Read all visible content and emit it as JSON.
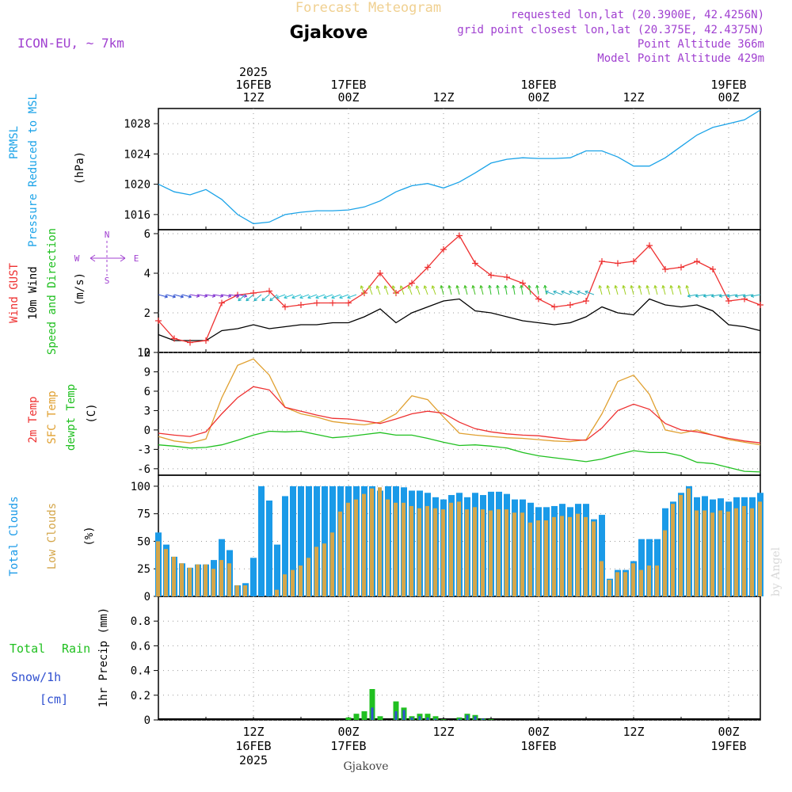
{
  "header": {
    "app_title": "Forecast Meteogram",
    "location": "Gjakove",
    "model": "ICON-EU, ~ 7km",
    "requested": "requested lon,lat (20.3900E, 42.4256N)",
    "grid_point": "grid point closest lon,lat (20.375E, 42.4375N)",
    "point_altitude": "Point Altitude 366m",
    "model_altitude": "Model Point Altitude 429m",
    "footer_location": "Gjakove",
    "credit": "by Angel"
  },
  "time_axis": {
    "top_ticks": [
      {
        "hour": 36,
        "lines": [
          "2025",
          "16FEB",
          "12Z"
        ]
      },
      {
        "hour": 48,
        "lines": [
          "17FEB",
          "00Z"
        ]
      },
      {
        "hour": 60,
        "lines": [
          "12Z"
        ]
      },
      {
        "hour": 72,
        "lines": [
          "18FEB",
          "00Z"
        ]
      },
      {
        "hour": 84,
        "lines": [
          "12Z"
        ]
      },
      {
        "hour": 96,
        "lines": [
          "19FEB",
          "00Z"
        ]
      }
    ],
    "bottom_ticks": [
      {
        "hour": 36,
        "lines": [
          "12Z",
          "16FEB",
          "2025"
        ]
      },
      {
        "hour": 48,
        "lines": [
          "00Z",
          "17FEB"
        ]
      },
      {
        "hour": 60,
        "lines": [
          "12Z"
        ]
      },
      {
        "hour": 72,
        "lines": [
          "00Z",
          "18FEB"
        ]
      },
      {
        "hour": 84,
        "lines": [
          "12Z"
        ]
      },
      {
        "hour": 96,
        "lines": [
          "00Z",
          "19FEB"
        ]
      }
    ]
  },
  "panels": {
    "pressure": {
      "label1": "PRMSL",
      "label2": "Pressure Reduced to MSL",
      "unit": "(hPa)",
      "ticks": [
        "1016",
        "1020",
        "1024",
        "1028"
      ]
    },
    "wind": {
      "label1": "Wind GUST",
      "label2": "10m Wind",
      "label3": "Speed and Direction",
      "unit": "(m/s)",
      "ticks": [
        "0",
        "2",
        "4",
        "6"
      ],
      "compass_n": "N",
      "compass_s": "S",
      "compass_w": "W",
      "compass_e": "E"
    },
    "temp": {
      "label1": "2m Temp",
      "label2": "SFC Temp",
      "label3": "dewpt Temp",
      "unit": "(C)",
      "ticks": [
        "-6",
        "-3",
        "0",
        "3",
        "6",
        "9",
        "12"
      ]
    },
    "clouds": {
      "label1": "Total Clouds",
      "label2": "Low Clouds",
      "unit": "(%)",
      "ticks": [
        "0",
        "25",
        "50",
        "75",
        "100"
      ]
    },
    "precip": {
      "label1": "Total",
      "label1b": "Rain",
      "label2": "Snow/1h",
      "label3": "[cm]",
      "unit": "1hr Precip (mm)",
      "ticks": [
        "0",
        "0.2",
        "0.4",
        "0.6",
        "0.8"
      ]
    }
  },
  "colors": {
    "pressure": "#1ba3e8",
    "gust": "#ee3030",
    "wind": "#000000",
    "t2m": "#ee3030",
    "sfc": "#e0a030",
    "dew": "#20c020",
    "total_cloud": "#1a9ae8",
    "low_cloud": "#d4a64a",
    "rain": "#20c020",
    "snow": "#3050d0",
    "purple": "#a040d0",
    "grid": "#999999"
  },
  "chart_data": [
    {
      "type": "line",
      "name": "PRMSL",
      "x_hours": [
        24,
        26,
        28,
        30,
        32,
        34,
        36,
        38,
        40,
        42,
        44,
        46,
        48,
        50,
        52,
        54,
        56,
        58,
        60,
        62,
        64,
        66,
        68,
        70,
        72,
        74,
        76,
        78,
        80,
        82,
        84,
        86,
        88,
        90,
        92,
        94,
        96,
        98,
        100
      ],
      "values": [
        1020.0,
        1019.0,
        1018.6,
        1019.3,
        1018.0,
        1016.0,
        1014.8,
        1015.0,
        1016.0,
        1016.3,
        1016.5,
        1016.5,
        1016.6,
        1017.0,
        1017.8,
        1019.0,
        1019.8,
        1020.1,
        1019.5,
        1020.3,
        1021.5,
        1022.8,
        1023.3,
        1023.5,
        1023.4,
        1023.4,
        1023.5,
        1024.4,
        1024.4,
        1023.6,
        1022.4,
        1022.4,
        1023.5,
        1025.0,
        1026.5,
        1027.5,
        1028.0,
        1028.5,
        1029.8
      ],
      "ylim": [
        1014,
        1030
      ]
    },
    {
      "type": "line",
      "name": "Wind GUST",
      "x_hours": [
        24,
        26,
        28,
        30,
        32,
        34,
        36,
        38,
        40,
        42,
        44,
        46,
        48,
        50,
        52,
        54,
        56,
        58,
        60,
        62,
        64,
        66,
        68,
        70,
        72,
        74,
        76,
        78,
        80,
        82,
        84,
        86,
        88,
        90,
        92,
        94,
        96,
        98,
        100
      ],
      "values": [
        1.6,
        0.7,
        0.5,
        0.6,
        2.5,
        2.9,
        3.0,
        3.1,
        2.3,
        2.4,
        2.5,
        2.5,
        2.5,
        3.0,
        4.0,
        3.0,
        3.5,
        4.3,
        5.2,
        5.9,
        4.5,
        3.9,
        3.8,
        3.5,
        2.7,
        2.3,
        2.4,
        2.6,
        4.6,
        4.5,
        4.6,
        5.4,
        4.2,
        4.3,
        4.6,
        4.2,
        2.6,
        2.7,
        2.4
      ],
      "ylim": [
        0,
        6.2
      ]
    },
    {
      "type": "line",
      "name": "10m Wind",
      "x_hours": [
        24,
        26,
        28,
        30,
        32,
        34,
        36,
        38,
        40,
        42,
        44,
        46,
        48,
        50,
        52,
        54,
        56,
        58,
        60,
        62,
        64,
        66,
        68,
        70,
        72,
        74,
        76,
        78,
        80,
        82,
        84,
        86,
        88,
        90,
        92,
        94,
        96,
        98,
        100
      ],
      "values": [
        0.9,
        0.6,
        0.6,
        0.6,
        1.1,
        1.2,
        1.4,
        1.2,
        1.3,
        1.4,
        1.4,
        1.5,
        1.5,
        1.8,
        2.2,
        1.5,
        2.0,
        2.3,
        2.6,
        2.7,
        2.1,
        2.0,
        1.8,
        1.6,
        1.5,
        1.4,
        1.5,
        1.8,
        2.3,
        2.0,
        1.9,
        2.7,
        2.4,
        2.3,
        2.4,
        2.1,
        1.4,
        1.3,
        1.1
      ],
      "ylim": [
        0,
        6.2
      ]
    },
    {
      "type": "line",
      "name": "2m Temp",
      "x_hours": [
        24,
        26,
        28,
        30,
        32,
        34,
        36,
        38,
        40,
        42,
        44,
        46,
        48,
        50,
        52,
        54,
        56,
        58,
        60,
        62,
        64,
        66,
        68,
        70,
        72,
        74,
        76,
        78,
        80,
        82,
        84,
        86,
        88,
        90,
        92,
        94,
        96,
        98,
        100
      ],
      "values": [
        -0.5,
        -0.8,
        -1.0,
        -0.3,
        2.5,
        5.0,
        6.7,
        6.2,
        3.5,
        2.9,
        2.3,
        1.8,
        1.7,
        1.4,
        1.0,
        1.7,
        2.5,
        2.9,
        2.6,
        1.2,
        0.2,
        -0.3,
        -0.6,
        -0.8,
        -0.9,
        -1.2,
        -1.5,
        -1.6,
        0.3,
        3.0,
        4.0,
        3.2,
        1.0,
        0.0,
        -0.3,
        -0.8,
        -1.3,
        -1.7,
        -2.0
      ],
      "ylim": [
        -7,
        12
      ]
    },
    {
      "type": "line",
      "name": "SFC Temp",
      "x_hours": [
        24,
        26,
        28,
        30,
        32,
        34,
        36,
        38,
        40,
        42,
        44,
        46,
        48,
        50,
        52,
        54,
        56,
        58,
        60,
        62,
        64,
        66,
        68,
        70,
        72,
        74,
        76,
        78,
        80,
        82,
        84,
        86,
        88,
        90,
        92,
        94,
        96,
        98,
        100
      ],
      "values": [
        -1.0,
        -1.7,
        -2.0,
        -1.4,
        5.0,
        10.0,
        11.0,
        8.5,
        3.5,
        2.5,
        2.0,
        1.3,
        1.0,
        0.8,
        1.2,
        2.5,
        5.3,
        4.7,
        2.0,
        -0.5,
        -0.8,
        -1.0,
        -1.2,
        -1.3,
        -1.5,
        -1.7,
        -1.8,
        -1.5,
        2.5,
        7.5,
        8.5,
        5.5,
        0.0,
        -0.5,
        0.0,
        -0.8,
        -1.5,
        -1.9,
        -2.3
      ],
      "ylim": [
        -7,
        12
      ]
    },
    {
      "type": "line",
      "name": "dewpt Temp",
      "x_hours": [
        24,
        26,
        28,
        30,
        32,
        34,
        36,
        38,
        40,
        42,
        44,
        46,
        48,
        50,
        52,
        54,
        56,
        58,
        60,
        62,
        64,
        66,
        68,
        70,
        72,
        74,
        76,
        78,
        80,
        82,
        84,
        86,
        88,
        90,
        92,
        94,
        96,
        98,
        100
      ],
      "values": [
        -2.3,
        -2.5,
        -2.8,
        -2.7,
        -2.3,
        -1.6,
        -0.8,
        -0.2,
        -0.3,
        -0.2,
        -0.7,
        -1.2,
        -1.0,
        -0.7,
        -0.4,
        -0.8,
        -0.8,
        -1.3,
        -1.9,
        -2.4,
        -2.3,
        -2.5,
        -2.8,
        -3.5,
        -4.0,
        -4.3,
        -4.6,
        -4.9,
        -4.5,
        -3.8,
        -3.2,
        -3.5,
        -3.5,
        -4.0,
        -5.0,
        -5.2,
        -5.8,
        -6.4,
        -6.5
      ],
      "ylim": [
        -7,
        12
      ]
    },
    {
      "type": "bar",
      "name": "Total Clouds",
      "x_hours": [
        24,
        25,
        26,
        27,
        28,
        29,
        30,
        31,
        32,
        33,
        34,
        35,
        36,
        37,
        38,
        39,
        40,
        41,
        42,
        43,
        44,
        45,
        46,
        47,
        48,
        49,
        50,
        51,
        52,
        53,
        54,
        55,
        56,
        57,
        58,
        59,
        60,
        61,
        62,
        63,
        64,
        65,
        66,
        67,
        68,
        69,
        70,
        71,
        72,
        73,
        74,
        75,
        76,
        77,
        78,
        79,
        80,
        81,
        82,
        83,
        84,
        85,
        86,
        87,
        88,
        89,
        90,
        91,
        92,
        93,
        94,
        95,
        96,
        97,
        98,
        99,
        100
      ],
      "values": [
        58,
        47,
        36,
        30,
        26,
        29,
        29,
        33,
        52,
        42,
        10,
        12,
        35,
        100,
        87,
        47,
        91,
        100,
        100,
        100,
        100,
        100,
        100,
        100,
        100,
        100,
        100,
        100,
        96,
        100,
        100,
        99,
        96,
        96,
        94,
        90,
        88,
        92,
        94,
        90,
        94,
        92,
        95,
        95,
        93,
        88,
        88,
        85,
        81,
        81,
        82,
        84,
        81,
        84,
        84,
        70,
        74,
        16,
        24,
        24,
        32,
        52,
        52,
        52,
        80,
        86,
        94,
        100,
        90,
        91,
        88,
        89,
        86,
        90,
        90,
        90,
        94
      ],
      "ylim": [
        0,
        110
      ]
    },
    {
      "type": "bar",
      "name": "Low Clouds",
      "x_hours": [
        24,
        25,
        26,
        27,
        28,
        29,
        30,
        31,
        32,
        33,
        34,
        35,
        36,
        37,
        38,
        39,
        40,
        41,
        42,
        43,
        44,
        45,
        46,
        47,
        48,
        49,
        50,
        51,
        52,
        53,
        54,
        55,
        56,
        57,
        58,
        59,
        60,
        61,
        62,
        63,
        64,
        65,
        66,
        67,
        68,
        69,
        70,
        71,
        72,
        73,
        74,
        75,
        76,
        77,
        78,
        79,
        80,
        81,
        82,
        83,
        84,
        85,
        86,
        87,
        88,
        89,
        90,
        91,
        92,
        93,
        94,
        95,
        96,
        97,
        98,
        99,
        100
      ],
      "values": [
        50,
        43,
        36,
        30,
        26,
        29,
        29,
        25,
        33,
        30,
        10,
        10,
        0,
        0,
        0,
        6,
        20,
        24,
        28,
        35,
        45,
        48,
        58,
        77,
        85,
        88,
        93,
        98,
        99,
        88,
        85,
        85,
        82,
        80,
        82,
        80,
        79,
        85,
        86,
        79,
        81,
        79,
        78,
        79,
        79,
        76,
        76,
        67,
        69,
        69,
        72,
        73,
        72,
        75,
        72,
        68,
        32,
        15,
        22,
        22,
        30,
        24,
        28,
        28,
        60,
        84,
        92,
        98,
        78,
        78,
        76,
        78,
        77,
        80,
        82,
        80,
        86
      ],
      "ylim": [
        0,
        110
      ]
    },
    {
      "type": "bar",
      "name": "1hr Precip",
      "x_hours": [
        48,
        49,
        50,
        51,
        52,
        53,
        54,
        55,
        56,
        57,
        58,
        59,
        60,
        61,
        62,
        63,
        64,
        65,
        66,
        67
      ],
      "rain": [
        0.02,
        0.05,
        0.07,
        0.25,
        0.03,
        0,
        0.15,
        0.1,
        0.03,
        0.05,
        0.05,
        0.03,
        0.005,
        0,
        0.02,
        0.05,
        0.04,
        0.01,
        0.005,
        0
      ],
      "snow": [
        0,
        0,
        0,
        0.1,
        0,
        0,
        0.07,
        0.08,
        0.02,
        0.03,
        0.02,
        0.01,
        0,
        0,
        0.01,
        0.04,
        0.03,
        0.01,
        0,
        0
      ],
      "ylim": [
        0,
        1.0
      ]
    }
  ]
}
